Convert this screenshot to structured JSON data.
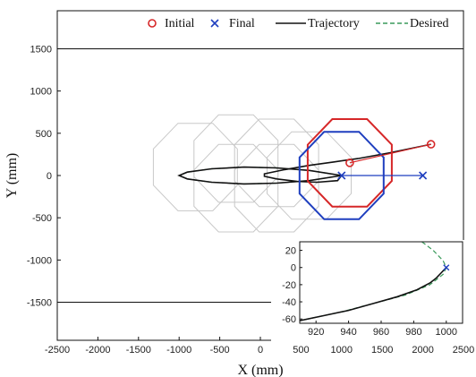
{
  "chart_data": [
    {
      "type": "line",
      "xlabel": "X (mm)",
      "ylabel": "Y (mm)",
      "xlim": [
        -2500,
        2500
      ],
      "ylim": [
        -1950,
        1950
      ],
      "xticks": [
        -2500,
        -2000,
        -1500,
        -1000,
        -500,
        0,
        500,
        1000,
        1500,
        2000,
        2500
      ],
      "yticks": [
        -1500,
        -1000,
        -500,
        0,
        500,
        1000,
        1500
      ],
      "grid": false,
      "legend_position": "top",
      "legend": [
        {
          "label": "Initial",
          "marker": "circle",
          "color": "#d62728"
        },
        {
          "label": "Final",
          "marker": "x",
          "color": "#1f3fbf"
        },
        {
          "label": "Trajectory",
          "style": "solid",
          "color": "#111111"
        },
        {
          "label": "Desired",
          "style": "dashed",
          "color": "#3a9a5a"
        }
      ],
      "boundaries_y": [
        1500,
        -1500
      ],
      "initial_points": [
        [
          1100,
          150
        ],
        [
          2100,
          370
        ]
      ],
      "final_points": [
        [
          1000,
          0
        ],
        [
          2000,
          0
        ]
      ],
      "initial_octagon": {
        "center": [
          1100,
          150
        ],
        "radius": 560
      },
      "final_octagon": {
        "center": [
          1000,
          0
        ],
        "radius": 560
      },
      "ghost_octagons": [
        {
          "center": [
            -800,
            100
          ],
          "radius": 560
        },
        {
          "center": [
            -300,
            200
          ],
          "radius": 560
        },
        {
          "center": [
            200,
            150
          ],
          "radius": 560
        },
        {
          "center": [
            600,
            0
          ],
          "radius": 560
        },
        {
          "center": [
            -300,
            -150
          ],
          "radius": 560
        },
        {
          "center": [
            200,
            -150
          ],
          "radius": 560
        }
      ],
      "desired_path": [
        [
          1000,
          0
        ],
        [
          600,
          60
        ],
        [
          200,
          90
        ],
        [
          -200,
          100
        ],
        [
          -600,
          80
        ],
        [
          -900,
          40
        ],
        [
          -1000,
          0
        ],
        [
          -900,
          -40
        ],
        [
          -600,
          -80
        ],
        [
          -200,
          -100
        ],
        [
          200,
          -90
        ],
        [
          600,
          -60
        ],
        [
          1000,
          0
        ]
      ],
      "trajectory_path": [
        [
          2100,
          370
        ],
        [
          1900,
          330
        ],
        [
          1600,
          270
        ],
        [
          1200,
          200
        ],
        [
          900,
          160
        ],
        [
          600,
          120
        ],
        [
          300,
          70
        ],
        [
          50,
          20
        ],
        [
          50,
          -10
        ],
        [
          200,
          -40
        ],
        [
          450,
          -70
        ],
        [
          700,
          -80
        ],
        [
          950,
          -60
        ],
        [
          1000,
          0
        ],
        [
          600,
          60
        ],
        [
          200,
          90
        ],
        [
          -200,
          100
        ],
        [
          -600,
          80
        ],
        [
          -900,
          40
        ],
        [
          -1000,
          0
        ],
        [
          -900,
          -40
        ],
        [
          -600,
          -80
        ],
        [
          -200,
          -100
        ],
        [
          200,
          -90
        ],
        [
          600,
          -60
        ],
        [
          1000,
          0
        ]
      ],
      "initial_link": [
        [
          1100,
          150
        ],
        [
          2100,
          370
        ]
      ],
      "final_link": [
        [
          1000,
          0
        ],
        [
          2000,
          0
        ]
      ]
    },
    {
      "type": "line",
      "inset": true,
      "xlim": [
        910,
        1010
      ],
      "ylim": [
        -65,
        30
      ],
      "xticks": [
        920,
        940,
        960,
        980,
        1000
      ],
      "yticks": [
        -60,
        -40,
        -20,
        0,
        20
      ],
      "desired": [
        [
          985,
          30
        ],
        [
          992,
          20
        ],
        [
          998,
          8
        ],
        [
          1000,
          0
        ],
        [
          998,
          -8
        ],
        [
          990,
          -20
        ],
        [
          975,
          -32
        ],
        [
          955,
          -42
        ],
        [
          935,
          -52
        ],
        [
          910,
          -62
        ]
      ],
      "trajectory": [
        [
          1000,
          0
        ],
        [
          997,
          -6
        ],
        [
          994,
          -12
        ],
        [
          990,
          -18
        ],
        [
          982,
          -26
        ],
        [
          970,
          -34
        ],
        [
          955,
          -42
        ],
        [
          940,
          -50
        ],
        [
          925,
          -56
        ],
        [
          910,
          -62
        ]
      ],
      "final_marker": [
        1000,
        0
      ]
    }
  ]
}
